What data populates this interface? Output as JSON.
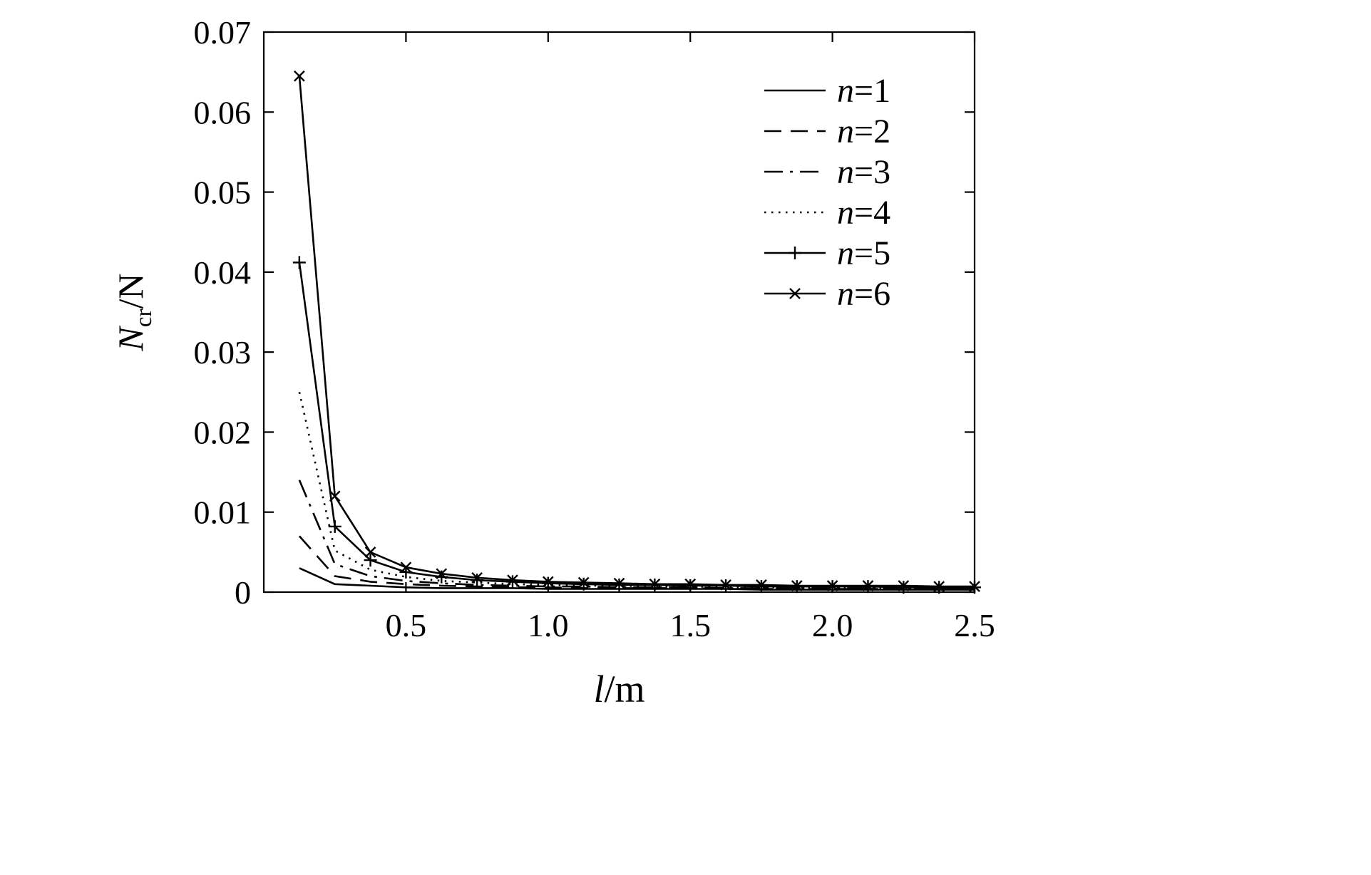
{
  "figure": {
    "background": "#ffffff",
    "ink": "#000000"
  },
  "chart_data": {
    "type": "line",
    "title": "",
    "xlabel": "l/m",
    "ylabel": "N_cr/N",
    "xlabel_parts": {
      "italic": "l",
      "rest": "/m"
    },
    "ylabel_parts": {
      "italic": "N",
      "subscript": "cr",
      "rest": "/N"
    },
    "xlim": [
      0,
      2.5
    ],
    "ylim": [
      0,
      0.07
    ],
    "grid": false,
    "x_ticks": [
      0.5,
      1.0,
      1.5,
      2.0,
      2.5
    ],
    "x_tick_labels": [
      "0.5",
      "1.0",
      "1.5",
      "2.0",
      "2.5"
    ],
    "y_ticks": [
      0,
      0.01,
      0.02,
      0.03,
      0.04,
      0.05,
      0.06,
      0.07
    ],
    "y_tick_labels": [
      "0",
      "0.01",
      "0.02",
      "0.03",
      "0.04",
      "0.05",
      "0.06",
      "0.07"
    ],
    "x": [
      0.125,
      0.25,
      0.375,
      0.5,
      0.625,
      0.75,
      0.875,
      1.0,
      1.125,
      1.25,
      1.375,
      1.5,
      1.625,
      1.75,
      1.875,
      2.0,
      2.125,
      2.25,
      2.375,
      2.5
    ],
    "series": [
      {
        "name": "n=1",
        "style": "solid",
        "marker": "none",
        "values": [
          0.003,
          0.001,
          0.0008,
          0.0006,
          0.0005,
          0.0005,
          0.0005,
          0.0004,
          0.0004,
          0.0004,
          0.0004,
          0.0004,
          0.0004,
          0.0003,
          0.0003,
          0.0003,
          0.0003,
          0.0003,
          0.0003,
          0.0003
        ]
      },
      {
        "name": "n=2",
        "style": "dashed",
        "marker": "none",
        "values": [
          0.007,
          0.002,
          0.0013,
          0.001,
          0.0008,
          0.0007,
          0.0006,
          0.0006,
          0.0005,
          0.0005,
          0.0005,
          0.0005,
          0.0004,
          0.0004,
          0.0004,
          0.0004,
          0.0004,
          0.0004,
          0.0004,
          0.0004
        ]
      },
      {
        "name": "n=3",
        "style": "dashdot",
        "marker": "none",
        "values": [
          0.014,
          0.0035,
          0.002,
          0.0014,
          0.0011,
          0.0009,
          0.0008,
          0.0007,
          0.0007,
          0.0006,
          0.0006,
          0.0006,
          0.0005,
          0.0005,
          0.0005,
          0.0005,
          0.0005,
          0.0004,
          0.0004,
          0.0004
        ]
      },
      {
        "name": "n=4",
        "style": "dotted",
        "marker": "none",
        "values": [
          0.025,
          0.0052,
          0.0028,
          0.0019,
          0.0014,
          0.0012,
          0.001,
          0.0009,
          0.0008,
          0.0008,
          0.0007,
          0.0007,
          0.0006,
          0.0006,
          0.0006,
          0.0006,
          0.0005,
          0.0005,
          0.0005,
          0.0005
        ]
      },
      {
        "name": "n=5",
        "style": "solid",
        "marker": "plus",
        "values": [
          0.0412,
          0.0082,
          0.004,
          0.0025,
          0.0019,
          0.0015,
          0.0013,
          0.0011,
          0.001,
          0.0009,
          0.0009,
          0.0008,
          0.0008,
          0.0007,
          0.0007,
          0.0007,
          0.0007,
          0.0006,
          0.0006,
          0.0006
        ]
      },
      {
        "name": "n=6",
        "style": "solid",
        "marker": "cross",
        "values": [
          0.0645,
          0.012,
          0.005,
          0.0031,
          0.0023,
          0.0018,
          0.0015,
          0.0013,
          0.0012,
          0.0011,
          0.001,
          0.001,
          0.0009,
          0.0009,
          0.0008,
          0.0008,
          0.0008,
          0.0008,
          0.0007,
          0.0007
        ]
      }
    ],
    "legend": {
      "position": "top-right",
      "entries": [
        {
          "italic": "n",
          "rest": "=1"
        },
        {
          "italic": "n",
          "rest": "=2"
        },
        {
          "italic": "n",
          "rest": "=3"
        },
        {
          "italic": "n",
          "rest": "=4"
        },
        {
          "italic": "n",
          "rest": "=5"
        },
        {
          "italic": "n",
          "rest": "=6"
        }
      ]
    }
  }
}
